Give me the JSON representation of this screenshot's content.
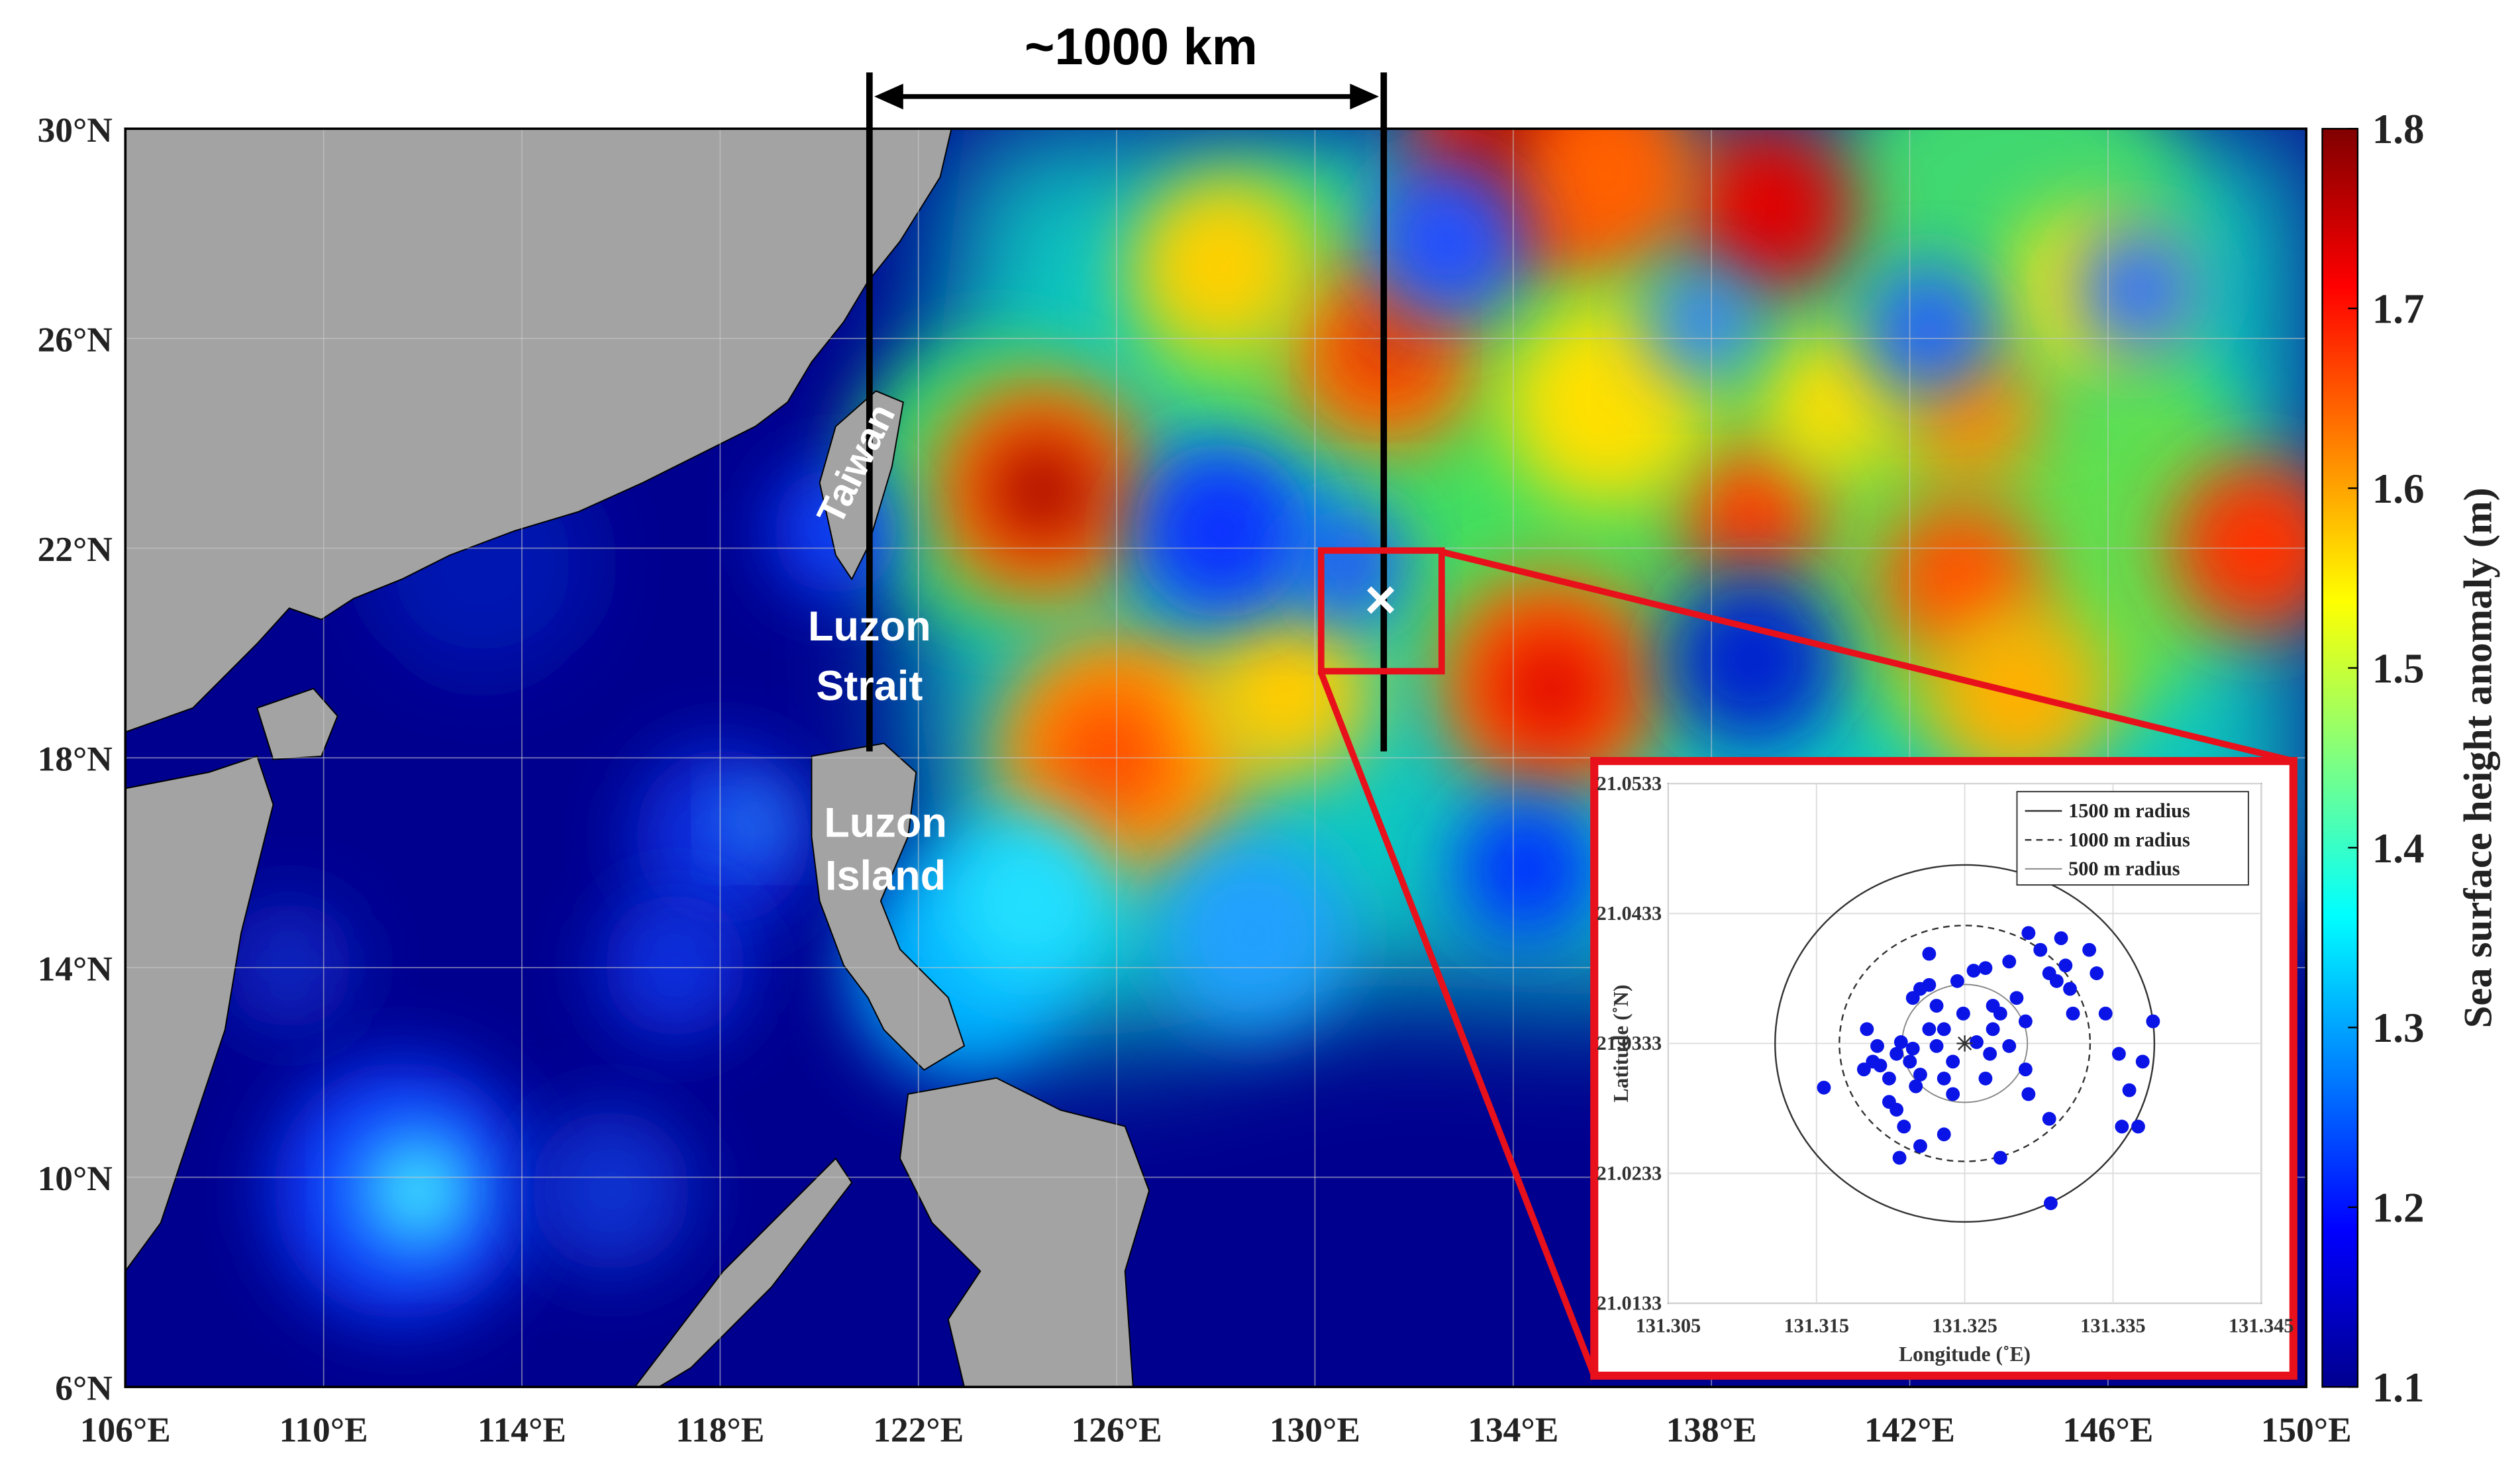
{
  "chart_data": [
    {
      "type": "heatmap",
      "xlim": [
        106,
        150
      ],
      "ylim": [
        6,
        30
      ],
      "xticks": [
        {
          "value": 106,
          "label": "106°E"
        },
        {
          "value": 110,
          "label": "110°E"
        },
        {
          "value": 114,
          "label": "114°E"
        },
        {
          "value": 118,
          "label": "118°E"
        },
        {
          "value": 122,
          "label": "122°E"
        },
        {
          "value": 126,
          "label": "126°E"
        },
        {
          "value": 130,
          "label": "130°E"
        },
        {
          "value": 134,
          "label": "134°E"
        },
        {
          "value": 138,
          "label": "138°E"
        },
        {
          "value": 142,
          "label": "142°E"
        },
        {
          "value": 146,
          "label": "146°E"
        },
        {
          "value": 150,
          "label": "150°E"
        }
      ],
      "yticks": [
        {
          "value": 6,
          "label": "6°N"
        },
        {
          "value": 10,
          "label": "10°N"
        },
        {
          "value": 14,
          "label": "14°N"
        },
        {
          "value": 18,
          "label": "18°N"
        },
        {
          "value": 22,
          "label": "22°N"
        },
        {
          "value": 26,
          "label": "26°N"
        },
        {
          "value": 30,
          "label": "30°N"
        }
      ],
      "grid": true,
      "colorbar": {
        "label": "Sea surface height anomaly (m)",
        "clim": [
          1.1,
          1.8
        ],
        "ticks": [
          1.1,
          1.2,
          1.3,
          1.4,
          1.5,
          1.6,
          1.7,
          1.8
        ]
      },
      "annotations": {
        "distance": "~1000 km",
        "taiwan": "Taiwan",
        "strait": [
          "Luzon",
          "Strait"
        ],
        "island": [
          "Luzon",
          "Island"
        ],
        "site": "×"
      }
    },
    {
      "type": "scatter",
      "x": [
        131.3155,
        131.3184,
        131.3188,
        131.3182,
        131.3193,
        131.3199,
        131.3204,
        131.3207,
        131.3213,
        131.3215,
        131.3217,
        131.322,
        131.3204,
        131.3209,
        131.3199,
        131.3215,
        131.322,
        131.3226,
        131.3231,
        131.3236,
        131.3226,
        131.3245,
        131.3249,
        131.3256,
        131.3264,
        131.3269,
        131.3274,
        131.328,
        131.3285,
        131.3291,
        131.3293,
        131.3301,
        131.3307,
        131.3312,
        131.3318,
        131.3321,
        131.3323,
        131.3334,
        131.3339,
        131.3345,
        131.3354,
        131.3361,
        131.337,
        131.3377,
        131.3367,
        131.3356,
        131.3307,
        131.3293,
        131.3291,
        131.3264,
        131.3267,
        131.3258,
        131.3242,
        131.3236,
        131.3274,
        131.3236,
        131.322,
        131.3206,
        131.3308,
        131.328,
        131.3315,
        131.3226,
        131.3231,
        131.3191,
        131.3242,
        131.3269
      ],
      "y": [
        21.0299,
        21.0344,
        21.0319,
        21.0313,
        21.0316,
        21.0306,
        21.0325,
        21.0334,
        21.0319,
        21.0329,
        21.03,
        21.0309,
        21.0282,
        21.0269,
        21.0288,
        21.0368,
        21.0375,
        21.0378,
        21.0362,
        21.0344,
        21.0402,
        21.0381,
        21.0356,
        21.0389,
        21.0391,
        21.0362,
        21.0356,
        21.0396,
        21.0368,
        21.035,
        21.0418,
        21.0405,
        21.0387,
        21.0381,
        21.0393,
        21.0375,
        21.0356,
        21.0405,
        21.0387,
        21.0356,
        21.0325,
        21.0297,
        21.0319,
        21.035,
        21.0269,
        21.0269,
        21.0275,
        21.0294,
        21.0313,
        21.0306,
        21.0325,
        21.0334,
        21.0319,
        21.0306,
        21.0245,
        21.0263,
        21.0254,
        21.0245,
        21.021,
        21.0331,
        21.0414,
        21.0344,
        21.0331,
        21.0331,
        21.0294,
        21.0344
      ],
      "color": "#0a14e6",
      "xlim": [
        131.305,
        131.345
      ],
      "ylim": [
        21.0133,
        21.0533
      ],
      "xticks": [
        131.305,
        131.315,
        131.325,
        131.335,
        131.345
      ],
      "yticks": [
        21.0133,
        21.0233,
        21.0333,
        21.0433,
        21.0533
      ],
      "grid": true,
      "xlabel": "Longitude (˚E)",
      "ylabel": "Latitude (˚N)",
      "center": {
        "x": 131.325,
        "y": 21.0333
      },
      "legend": [
        {
          "name": "1500 m radius",
          "style": "solid"
        },
        {
          "name": "1000 m radius",
          "style": "dashed"
        },
        {
          "name": "500 m radius",
          "style": "light"
        }
      ],
      "legend_position": "upper right"
    }
  ]
}
